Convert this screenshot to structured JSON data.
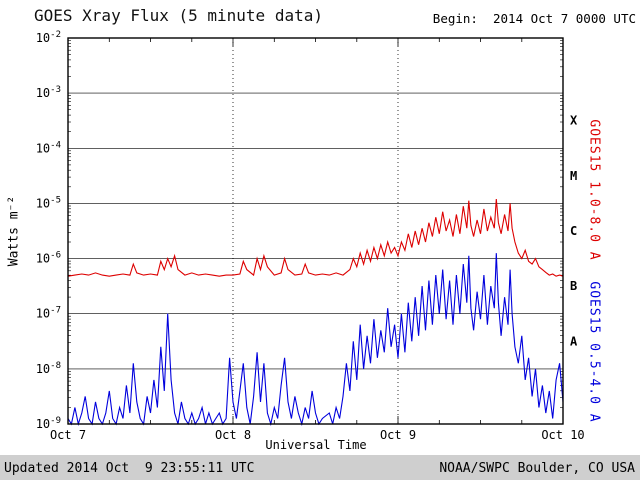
{
  "header": {
    "title": "GOES Xray Flux (5 minute data)",
    "begin": "Begin:  2014 Oct 7 0000 UTC"
  },
  "footer": {
    "updated": "Updated 2014 Oct  9 23:55:11 UTC",
    "credit": "NOAA/SWPC Boulder, CO USA"
  },
  "colors": {
    "long_channel": "#dd0000",
    "short_channel": "#0000dd",
    "grid": "#000000",
    "footer_band": "#cfcfcf"
  },
  "chart_data": {
    "type": "line",
    "title": "GOES Xray Flux (5 minute data)",
    "xlabel": "Universal Time",
    "ylabel": "Watts m⁻²",
    "xlim_hours": [
      0,
      72
    ],
    "ylim_log10": [
      -9,
      -2
    ],
    "grid": true,
    "legend_position": "right-rotated",
    "xticks": [
      {
        "hour": 0,
        "label": "Oct 7"
      },
      {
        "hour": 24,
        "label": "Oct 8"
      },
      {
        "hour": 48,
        "label": "Oct 9"
      },
      {
        "hour": 72,
        "label": "Oct 10"
      }
    ],
    "ylog_ticks": [
      -2,
      -3,
      -4,
      -5,
      -6,
      -7,
      -8,
      -9
    ],
    "flare_class_labels": [
      {
        "label": "X",
        "log10_mid": -3.5
      },
      {
        "label": "M",
        "log10_mid": -4.5
      },
      {
        "label": "C",
        "log10_mid": -5.5
      },
      {
        "label": "B",
        "log10_mid": -6.5
      },
      {
        "label": "A",
        "log10_mid": -7.5
      }
    ],
    "series": [
      {
        "name": "GOES15 1.0-8.0 A",
        "color": "#dd0000",
        "points_hour_log10flux": [
          [
            0,
            -6.32
          ],
          [
            1,
            -6.3
          ],
          [
            2,
            -6.28
          ],
          [
            3,
            -6.3
          ],
          [
            4,
            -6.26
          ],
          [
            5,
            -6.3
          ],
          [
            6,
            -6.32
          ],
          [
            7,
            -6.3
          ],
          [
            8,
            -6.28
          ],
          [
            9,
            -6.3
          ],
          [
            9.5,
            -6.1
          ],
          [
            10,
            -6.26
          ],
          [
            11,
            -6.3
          ],
          [
            12,
            -6.28
          ],
          [
            13,
            -6.3
          ],
          [
            13.5,
            -6.05
          ],
          [
            14,
            -6.2
          ],
          [
            14.5,
            -6.0
          ],
          [
            15,
            -6.15
          ],
          [
            15.5,
            -5.95
          ],
          [
            16,
            -6.2
          ],
          [
            17,
            -6.3
          ],
          [
            18,
            -6.26
          ],
          [
            19,
            -6.3
          ],
          [
            20,
            -6.28
          ],
          [
            21,
            -6.3
          ],
          [
            22,
            -6.32
          ],
          [
            23,
            -6.3
          ],
          [
            24,
            -6.3
          ],
          [
            25,
            -6.28
          ],
          [
            25.5,
            -6.05
          ],
          [
            26,
            -6.2
          ],
          [
            27,
            -6.3
          ],
          [
            27.5,
            -6.0
          ],
          [
            28,
            -6.2
          ],
          [
            28.5,
            -5.95
          ],
          [
            29,
            -6.15
          ],
          [
            30,
            -6.3
          ],
          [
            31,
            -6.26
          ],
          [
            31.5,
            -6.0
          ],
          [
            32,
            -6.2
          ],
          [
            33,
            -6.3
          ],
          [
            34,
            -6.28
          ],
          [
            34.5,
            -6.1
          ],
          [
            35,
            -6.26
          ],
          [
            36,
            -6.3
          ],
          [
            37,
            -6.28
          ],
          [
            38,
            -6.3
          ],
          [
            39,
            -6.26
          ],
          [
            40,
            -6.3
          ],
          [
            41,
            -6.2
          ],
          [
            41.5,
            -6.0
          ],
          [
            42,
            -6.15
          ],
          [
            42.5,
            -5.9
          ],
          [
            43,
            -6.1
          ],
          [
            43.5,
            -5.85
          ],
          [
            44,
            -6.05
          ],
          [
            44.5,
            -5.8
          ],
          [
            45,
            -6.0
          ],
          [
            45.5,
            -5.75
          ],
          [
            46,
            -5.95
          ],
          [
            46.5,
            -5.7
          ],
          [
            47,
            -5.9
          ],
          [
            47.5,
            -5.8
          ],
          [
            48,
            -5.95
          ],
          [
            48.5,
            -5.7
          ],
          [
            49,
            -5.85
          ],
          [
            49.5,
            -5.55
          ],
          [
            50,
            -5.8
          ],
          [
            50.5,
            -5.5
          ],
          [
            51,
            -5.75
          ],
          [
            51.5,
            -5.45
          ],
          [
            52,
            -5.7
          ],
          [
            52.5,
            -5.35
          ],
          [
            53,
            -5.6
          ],
          [
            53.5,
            -5.25
          ],
          [
            54,
            -5.55
          ],
          [
            54.5,
            -5.15
          ],
          [
            55,
            -5.5
          ],
          [
            55.5,
            -5.3
          ],
          [
            56,
            -5.6
          ],
          [
            56.5,
            -5.2
          ],
          [
            57,
            -5.55
          ],
          [
            57.5,
            -5.05
          ],
          [
            58,
            -5.45
          ],
          [
            58.3,
            -4.95
          ],
          [
            58.6,
            -5.4
          ],
          [
            59,
            -5.6
          ],
          [
            59.5,
            -5.3
          ],
          [
            60,
            -5.55
          ],
          [
            60.5,
            -5.1
          ],
          [
            61,
            -5.5
          ],
          [
            61.5,
            -5.25
          ],
          [
            62,
            -5.45
          ],
          [
            62.3,
            -4.92
          ],
          [
            62.6,
            -5.35
          ],
          [
            63,
            -5.55
          ],
          [
            63.5,
            -5.2
          ],
          [
            64,
            -5.5
          ],
          [
            64.3,
            -5.0
          ],
          [
            64.6,
            -5.45
          ],
          [
            65,
            -5.7
          ],
          [
            65.5,
            -5.9
          ],
          [
            66,
            -6.0
          ],
          [
            66.5,
            -5.85
          ],
          [
            67,
            -6.05
          ],
          [
            67.5,
            -6.1
          ],
          [
            68,
            -6.0
          ],
          [
            68.5,
            -6.15
          ],
          [
            69,
            -6.2
          ],
          [
            69.5,
            -6.25
          ],
          [
            70,
            -6.3
          ],
          [
            70.5,
            -6.28
          ],
          [
            71,
            -6.32
          ],
          [
            71.5,
            -6.3
          ],
          [
            72,
            -6.32
          ]
        ]
      },
      {
        "name": "GOES15 0.5-4.0 A",
        "color": "#0000dd",
        "points_hour_log10flux": [
          [
            0,
            -8.9
          ],
          [
            0.5,
            -9.0
          ],
          [
            1,
            -8.7
          ],
          [
            1.5,
            -9.0
          ],
          [
            2,
            -8.8
          ],
          [
            2.5,
            -8.5
          ],
          [
            3,
            -8.9
          ],
          [
            3.5,
            -9.0
          ],
          [
            4,
            -8.6
          ],
          [
            4.5,
            -8.9
          ],
          [
            5,
            -9.0
          ],
          [
            5.5,
            -8.8
          ],
          [
            6,
            -8.4
          ],
          [
            6.5,
            -8.9
          ],
          [
            7,
            -9.0
          ],
          [
            7.5,
            -8.7
          ],
          [
            8,
            -8.9
          ],
          [
            8.5,
            -8.3
          ],
          [
            9,
            -8.8
          ],
          [
            9.5,
            -7.9
          ],
          [
            10,
            -8.6
          ],
          [
            10.5,
            -8.9
          ],
          [
            11,
            -9.0
          ],
          [
            11.5,
            -8.5
          ],
          [
            12,
            -8.8
          ],
          [
            12.5,
            -8.2
          ],
          [
            13,
            -8.7
          ],
          [
            13.5,
            -7.6
          ],
          [
            14,
            -8.4
          ],
          [
            14.5,
            -7.0
          ],
          [
            15,
            -8.2
          ],
          [
            15.5,
            -8.8
          ],
          [
            16,
            -9.0
          ],
          [
            16.5,
            -8.6
          ],
          [
            17,
            -8.9
          ],
          [
            17.5,
            -9.0
          ],
          [
            18,
            -8.8
          ],
          [
            18.5,
            -9.0
          ],
          [
            19,
            -8.9
          ],
          [
            19.5,
            -8.7
          ],
          [
            20,
            -9.0
          ],
          [
            20.5,
            -8.8
          ],
          [
            21,
            -9.0
          ],
          [
            21.5,
            -8.9
          ],
          [
            22,
            -8.8
          ],
          [
            22.5,
            -9.0
          ],
          [
            23,
            -8.9
          ],
          [
            23.5,
            -7.8
          ],
          [
            24,
            -8.6
          ],
          [
            24.5,
            -8.9
          ],
          [
            25,
            -8.4
          ],
          [
            25.5,
            -7.9
          ],
          [
            26,
            -8.7
          ],
          [
            26.5,
            -9.0
          ],
          [
            27,
            -8.5
          ],
          [
            27.5,
            -7.7
          ],
          [
            28,
            -8.6
          ],
          [
            28.5,
            -7.9
          ],
          [
            29,
            -8.8
          ],
          [
            29.5,
            -9.0
          ],
          [
            30,
            -8.7
          ],
          [
            30.5,
            -8.9
          ],
          [
            31,
            -8.3
          ],
          [
            31.5,
            -7.8
          ],
          [
            32,
            -8.6
          ],
          [
            32.5,
            -8.9
          ],
          [
            33,
            -8.5
          ],
          [
            33.5,
            -8.8
          ],
          [
            34,
            -9.0
          ],
          [
            34.5,
            -8.7
          ],
          [
            35,
            -8.9
          ],
          [
            35.5,
            -8.4
          ],
          [
            36,
            -8.8
          ],
          [
            36.5,
            -9.0
          ],
          [
            37,
            -8.9
          ],
          [
            38,
            -8.8
          ],
          [
            38.5,
            -9.0
          ],
          [
            39,
            -8.7
          ],
          [
            39.5,
            -8.9
          ],
          [
            40,
            -8.5
          ],
          [
            40.5,
            -7.9
          ],
          [
            41,
            -8.4
          ],
          [
            41.5,
            -7.5
          ],
          [
            42,
            -8.2
          ],
          [
            42.5,
            -7.2
          ],
          [
            43,
            -8.0
          ],
          [
            43.5,
            -7.4
          ],
          [
            44,
            -7.9
          ],
          [
            44.5,
            -7.1
          ],
          [
            45,
            -7.8
          ],
          [
            45.5,
            -7.3
          ],
          [
            46,
            -7.7
          ],
          [
            46.5,
            -6.9
          ],
          [
            47,
            -7.6
          ],
          [
            47.5,
            -7.2
          ],
          [
            48,
            -7.8
          ],
          [
            48.5,
            -7.0
          ],
          [
            49,
            -7.7
          ],
          [
            49.5,
            -6.8
          ],
          [
            50,
            -7.5
          ],
          [
            50.5,
            -6.7
          ],
          [
            51,
            -7.4
          ],
          [
            51.5,
            -6.5
          ],
          [
            52,
            -7.3
          ],
          [
            52.5,
            -6.4
          ],
          [
            53,
            -7.2
          ],
          [
            53.5,
            -6.3
          ],
          [
            54,
            -7.0
          ],
          [
            54.5,
            -6.2
          ],
          [
            55,
            -7.1
          ],
          [
            55.5,
            -6.4
          ],
          [
            56,
            -7.2
          ],
          [
            56.5,
            -6.3
          ],
          [
            57,
            -7.0
          ],
          [
            57.5,
            -6.1
          ],
          [
            58,
            -6.8
          ],
          [
            58.3,
            -5.95
          ],
          [
            58.6,
            -6.9
          ],
          [
            59,
            -7.3
          ],
          [
            59.5,
            -6.6
          ],
          [
            60,
            -7.1
          ],
          [
            60.5,
            -6.3
          ],
          [
            61,
            -7.2
          ],
          [
            61.5,
            -6.5
          ],
          [
            62,
            -6.9
          ],
          [
            62.3,
            -5.9
          ],
          [
            62.6,
            -6.8
          ],
          [
            63,
            -7.4
          ],
          [
            63.5,
            -6.7
          ],
          [
            64,
            -7.2
          ],
          [
            64.3,
            -6.2
          ],
          [
            64.6,
            -7.0
          ],
          [
            65,
            -7.6
          ],
          [
            65.5,
            -7.9
          ],
          [
            66,
            -7.4
          ],
          [
            66.5,
            -8.2
          ],
          [
            67,
            -7.8
          ],
          [
            67.5,
            -8.5
          ],
          [
            68,
            -8.0
          ],
          [
            68.5,
            -8.7
          ],
          [
            69,
            -8.3
          ],
          [
            69.5,
            -8.8
          ],
          [
            70,
            -8.4
          ],
          [
            70.5,
            -8.9
          ],
          [
            71,
            -8.2
          ],
          [
            71.5,
            -7.9
          ],
          [
            72,
            -8.6
          ]
        ]
      }
    ]
  }
}
